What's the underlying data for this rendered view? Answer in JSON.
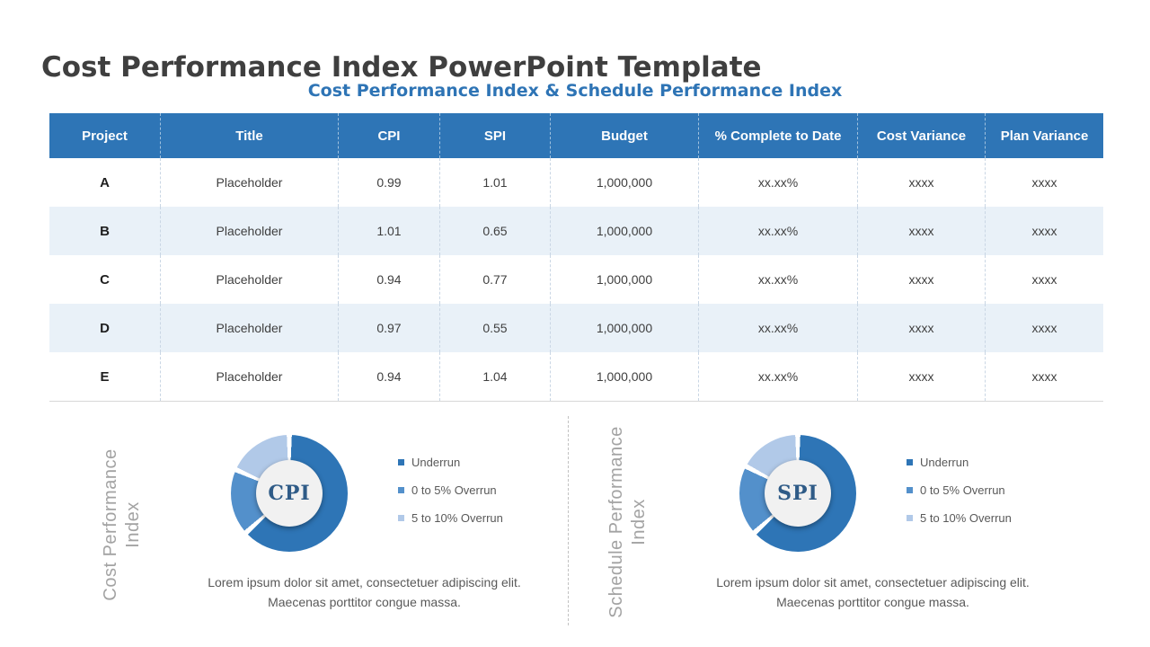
{
  "page": {
    "title": "Cost Performance Index PowerPoint Template",
    "subtitle": "Cost Performance Index & Schedule Performance Index"
  },
  "table": {
    "columns": [
      "Project",
      "Title",
      "CPI",
      "SPI",
      "Budget",
      "% Complete to Date",
      "Cost Variance",
      "Plan Variance"
    ],
    "rows": [
      [
        "A",
        "Placeholder",
        "0.99",
        "1.01",
        "1,000,000",
        "xx.xx%",
        "xxxx",
        "xxxx"
      ],
      [
        "B",
        "Placeholder",
        "1.01",
        "0.65",
        "1,000,000",
        "xx.xx%",
        "xxxx",
        "xxxx"
      ],
      [
        "C",
        "Placeholder",
        "0.94",
        "0.77",
        "1,000,000",
        "xx.xx%",
        "xxxx",
        "xxxx"
      ],
      [
        "D",
        "Placeholder",
        "0.97",
        "0.55",
        "1,000,000",
        "xx.xx%",
        "xxxx",
        "xxxx"
      ],
      [
        "E",
        "Placeholder",
        "0.94",
        "1.04",
        "1,000,000",
        "xx.xx%",
        "xxxx",
        "xxxx"
      ]
    ]
  },
  "chart_data": [
    {
      "type": "pie",
      "title": "Cost Performance Index",
      "side_label": [
        "Cost Performance",
        "Index"
      ],
      "center_label": "CPI",
      "categories": [
        "Underrun",
        "0 to 5% Overrun",
        "5 to 10% Overrun"
      ],
      "values": [
        62,
        17,
        17
      ],
      "colors": [
        "#2E75B6",
        "#5390CB",
        "#B1C9E8"
      ],
      "donut": true,
      "legend_position": "right",
      "description": "Lorem ipsum dolor sit amet, consectetuer adipiscing elit. Maecenas porttitor congue massa."
    },
    {
      "type": "pie",
      "title": "Schedule Performance Index",
      "side_label": [
        "Schedule Performance",
        "Index"
      ],
      "center_label": "SPI",
      "categories": [
        "Underrun",
        "0 to 5% Overrun",
        "5 to 10% Overrun"
      ],
      "values": [
        62,
        18,
        16
      ],
      "colors": [
        "#2E75B6",
        "#5390CB",
        "#B1C9E8"
      ],
      "donut": true,
      "legend_position": "right",
      "description": "Lorem ipsum dolor sit amet, consectetuer adipiscing elit. Maecenas porttitor congue massa."
    }
  ],
  "colors": {
    "accent_blue": "#2E75B6",
    "alt_row_blue": "#E9F1F8",
    "title_gray": "#3F3F3F",
    "muted_gray": "#A3A3A3",
    "body_gray": "#595959"
  }
}
